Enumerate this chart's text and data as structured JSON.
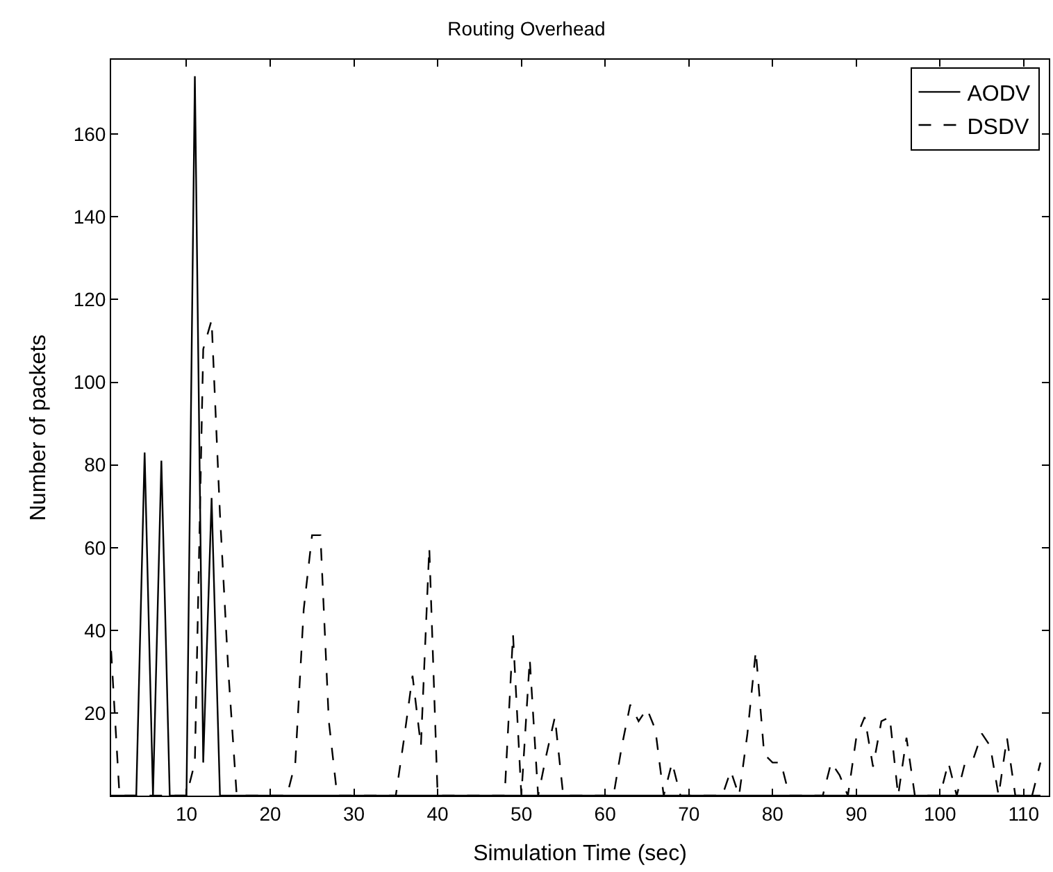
{
  "chart_data": {
    "type": "line",
    "title": "Routing Overhead",
    "xlabel": "Simulation Time (sec)",
    "ylabel": "Number of packets",
    "series": [
      {
        "name": "AODV",
        "color": "#000000",
        "line_style": "solid",
        "x": [
          1,
          4,
          5,
          6,
          7,
          8,
          10,
          11,
          12,
          13,
          14,
          112
        ],
        "values": [
          0,
          0,
          83,
          0,
          81,
          0,
          0,
          174,
          8,
          72,
          0,
          0
        ]
      },
      {
        "name": "DSDV",
        "color": "#000000",
        "line_style": "dashed",
        "x": [
          1,
          2,
          3,
          4,
          5,
          6,
          7,
          8,
          9,
          10,
          11,
          12,
          13,
          14,
          15,
          16,
          17,
          18,
          19,
          20,
          21,
          22,
          23,
          24,
          25,
          26,
          27,
          28,
          29,
          30,
          31,
          32,
          33,
          34,
          35,
          36,
          37,
          38,
          39,
          40,
          41,
          42,
          43,
          44,
          45,
          46,
          47,
          48,
          49,
          50,
          51,
          52,
          53,
          54,
          55,
          56,
          57,
          58,
          59,
          60,
          61,
          62,
          63,
          64,
          65,
          66,
          67,
          68,
          69,
          70,
          71,
          72,
          73,
          74,
          75,
          76,
          77,
          78,
          79,
          80,
          81,
          82,
          83,
          84,
          85,
          86,
          87,
          88,
          89,
          90,
          91,
          92,
          93,
          94,
          95,
          96,
          97,
          98,
          99,
          100,
          101,
          102,
          103,
          104,
          105,
          106,
          107,
          108,
          109,
          110,
          111,
          112
        ],
        "values": [
          35,
          0,
          0,
          0,
          0,
          0,
          0,
          0,
          0,
          0,
          8,
          108,
          115,
          68,
          30,
          0,
          0,
          0,
          0,
          0,
          0,
          0,
          8,
          45,
          63,
          63,
          18,
          0,
          0,
          0,
          0,
          0,
          0,
          0,
          0,
          14,
          29,
          12,
          60,
          0,
          0,
          0,
          0,
          0,
          0,
          0,
          0,
          0,
          39,
          0,
          33,
          0,
          10,
          19,
          0,
          0,
          0,
          0,
          0,
          0,
          0,
          12,
          22,
          18,
          21,
          16,
          0,
          8,
          0,
          0,
          0,
          0,
          0,
          0,
          6,
          0,
          15,
          35,
          10,
          8,
          8,
          0,
          0,
          0,
          0,
          0,
          8,
          5,
          0,
          14,
          19,
          7,
          18,
          19,
          0,
          14,
          0,
          0,
          0,
          0,
          8,
          0,
          8,
          9,
          15,
          12,
          0,
          14,
          0,
          0,
          0,
          8
        ]
      }
    ],
    "xlim": [
      1,
      113
    ],
    "ylim": [
      0,
      178
    ],
    "xticks": [
      10,
      20,
      30,
      40,
      50,
      60,
      70,
      80,
      90,
      100,
      110
    ],
    "yticks": [
      20,
      40,
      60,
      80,
      100,
      120,
      140,
      160
    ],
    "legend": "top right"
  }
}
